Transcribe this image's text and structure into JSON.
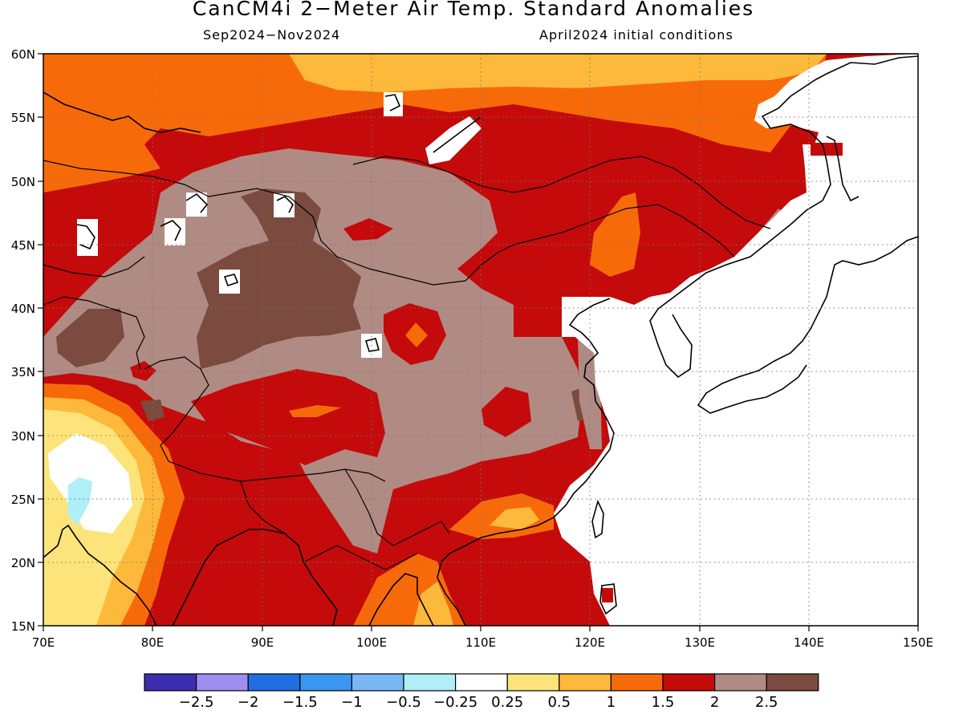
{
  "title": "CanCM4i 2−Meter Air Temp. Standard Anomalies",
  "subtitle_left": "Sep2024−Nov2024",
  "subtitle_right": "April2024 initial conditions",
  "map": {
    "lon_range": [
      70,
      150
    ],
    "lat_range": [
      15,
      60
    ],
    "lon_ticks": [
      "70E",
      "80E",
      "90E",
      "100E",
      "110E",
      "120E",
      "130E",
      "140E",
      "150E"
    ],
    "lat_ticks": [
      "15N",
      "20N",
      "25N",
      "30N",
      "35N",
      "40N",
      "45N",
      "50N",
      "55N",
      "60N"
    ]
  },
  "colorbar": {
    "colors": [
      "#3b2fb0",
      "#9e8ef0",
      "#1f6fe0",
      "#3a96f2",
      "#79b8f5",
      "#b0eef8",
      "#ffffff",
      "#fde47a",
      "#fdb93b",
      "#f76a0a",
      "#c40a0a",
      "#b08b83",
      "#7a4b3e"
    ],
    "labels": [
      "−2.5",
      "−2",
      "−1.5",
      "−1",
      "−0.5",
      "−0.25",
      "0.25",
      "0.5",
      "1",
      "1.5",
      "2",
      "2.5"
    ]
  },
  "colors": {
    "sea": "#ffffff",
    "coast": "#000000"
  }
}
